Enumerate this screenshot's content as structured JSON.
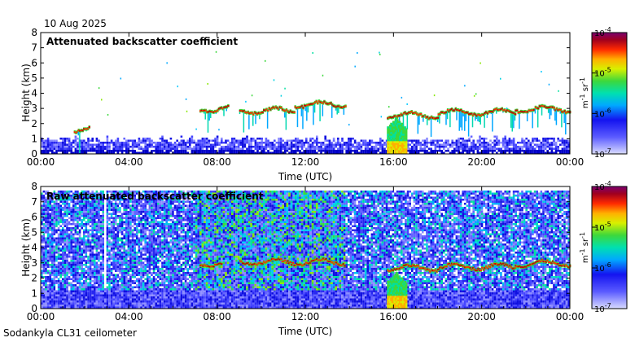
{
  "header": {
    "date": "10 Aug 2025"
  },
  "footer": {
    "instrument": "Sodankyla CL31 ceilometer"
  },
  "colorbar_ticks": [
    "10-4",
    "10-5",
    "10-6",
    "10-7"
  ],
  "colorbar_unit": "m-1 sr-1",
  "chart_data": [
    {
      "type": "heatmap",
      "title": "Attenuated backscatter coefficient",
      "xlabel": "Time (UTC)",
      "ylabel": "Height (km)",
      "x_ticks": [
        "00:00",
        "04:00",
        "08:00",
        "12:00",
        "16:00",
        "20:00",
        "00:00"
      ],
      "x_range_hours": [
        0,
        24
      ],
      "y_ticks": [
        "0",
        "1",
        "2",
        "3",
        "4",
        "5",
        "6",
        "7",
        "8"
      ],
      "ylim": [
        0,
        8
      ],
      "colorbar": {
        "label": "m-1 sr-1",
        "range": [
          1e-07,
          0.0001
        ],
        "scale": "log"
      },
      "features": {
        "surface_layer_top_km": 1.0,
        "cloud_layers": [
          {
            "start_h": 1.5,
            "end_h": 2.2,
            "height_km": 1.7
          },
          {
            "start_h": 7.2,
            "end_h": 8.5,
            "height_km": 3.0
          },
          {
            "start_h": 9.0,
            "end_h": 11.5,
            "height_km": 2.9
          },
          {
            "start_h": 11.5,
            "end_h": 13.8,
            "height_km": 3.3
          },
          {
            "start_h": 15.7,
            "end_h": 18.0,
            "height_km": 2.6
          },
          {
            "start_h": 18.0,
            "end_h": 21.5,
            "height_km": 2.8
          },
          {
            "start_h": 21.5,
            "end_h": 24.0,
            "height_km": 3.0
          }
        ],
        "precipitation_shaft_h": 16.1
      }
    },
    {
      "type": "heatmap",
      "title": "Raw attenuated backscatter coefficient",
      "xlabel": "Time (UTC)",
      "ylabel": "Height (km)",
      "x_ticks": [
        "00:00",
        "04:00",
        "08:00",
        "12:00",
        "16:00",
        "20:00",
        "00:00"
      ],
      "x_range_hours": [
        0,
        24
      ],
      "y_ticks": [
        "0",
        "1",
        "2",
        "3",
        "4",
        "5",
        "6",
        "7",
        "8"
      ],
      "ylim": [
        0,
        8
      ],
      "colorbar": {
        "label": "m-1 sr-1",
        "range": [
          1e-07,
          0.0001
        ],
        "scale": "log"
      },
      "features": {
        "noisy_band_h": [
          7.0,
          13.8
        ],
        "gap_h": 2.9,
        "cloud_layers": [
          {
            "start_h": 7.2,
            "end_h": 8.2,
            "height_km": 3.0
          },
          {
            "start_h": 9.0,
            "end_h": 13.8,
            "height_km": 3.1
          },
          {
            "start_h": 15.7,
            "end_h": 18.0,
            "height_km": 2.7
          },
          {
            "start_h": 18.0,
            "end_h": 21.5,
            "height_km": 2.8
          },
          {
            "start_h": 21.5,
            "end_h": 24.0,
            "height_km": 3.0
          }
        ],
        "precipitation_shaft_h": 16.1
      }
    }
  ]
}
